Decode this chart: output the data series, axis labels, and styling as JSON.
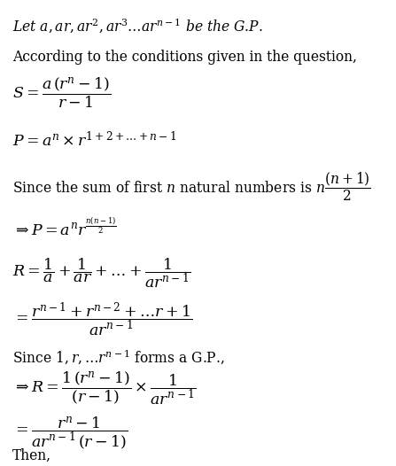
{
  "bg_color": "#ffffff",
  "text_color": "#000000",
  "figsize": [
    4.47,
    5.26
  ],
  "dpi": 100
}
